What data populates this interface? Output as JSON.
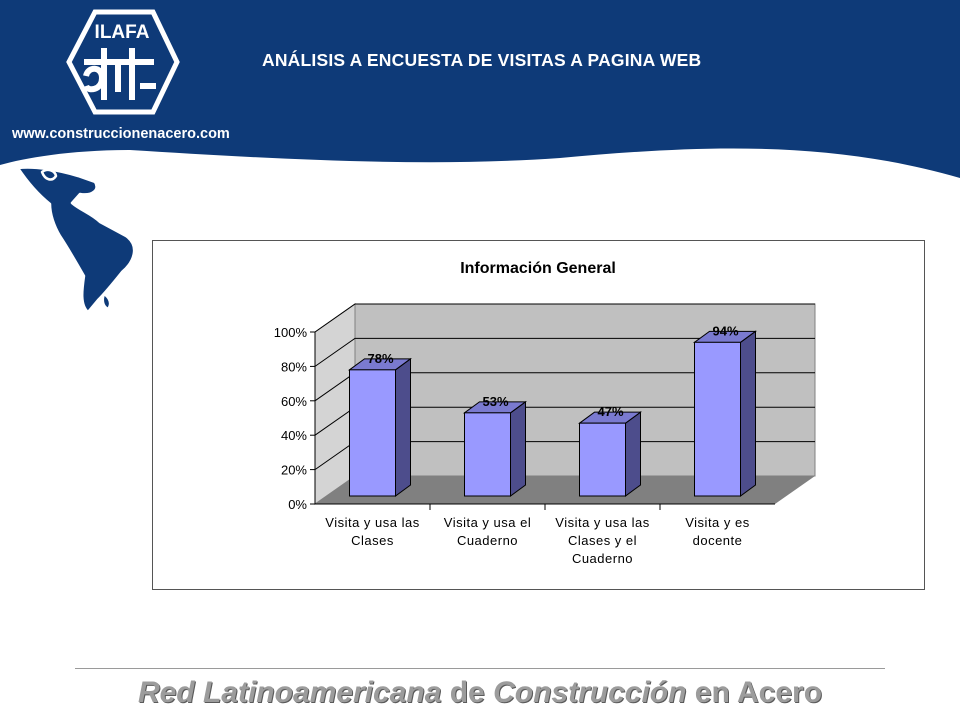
{
  "header": {
    "logo_text": "ILAFA",
    "title": "ANÁLISIS A ENCUESTA DE VISITAS A PAGINA WEB",
    "website": "www.construccionenacero.com"
  },
  "footer": {
    "part1": "Red Latinoamericana",
    "part2": " de ",
    "part3": "Construcción",
    "part4": " en Acero"
  },
  "colors": {
    "header_blue": "#0e3a78",
    "bar_front": "#9999ff",
    "bar_side": "#4d4d8c",
    "wall": "#c0c0c0",
    "floor": "#808080"
  },
  "chart_data": {
    "type": "bar",
    "title": "Información General",
    "categories": [
      [
        "Visita y usa las",
        "Clases"
      ],
      [
        "Visita y usa el",
        "Cuaderno"
      ],
      [
        "Visita y usa las",
        "Clases y el",
        "Cuaderno"
      ],
      [
        "Visita y es",
        "docente"
      ]
    ],
    "values": [
      78,
      53,
      47,
      94
    ],
    "data_labels": [
      "78%",
      "53%",
      "47%",
      "94%"
    ],
    "y_ticks": [
      "0%",
      "20%",
      "40%",
      "60%",
      "80%",
      "100%"
    ],
    "ylim": [
      0,
      100
    ],
    "grid": true,
    "legend": "none"
  }
}
